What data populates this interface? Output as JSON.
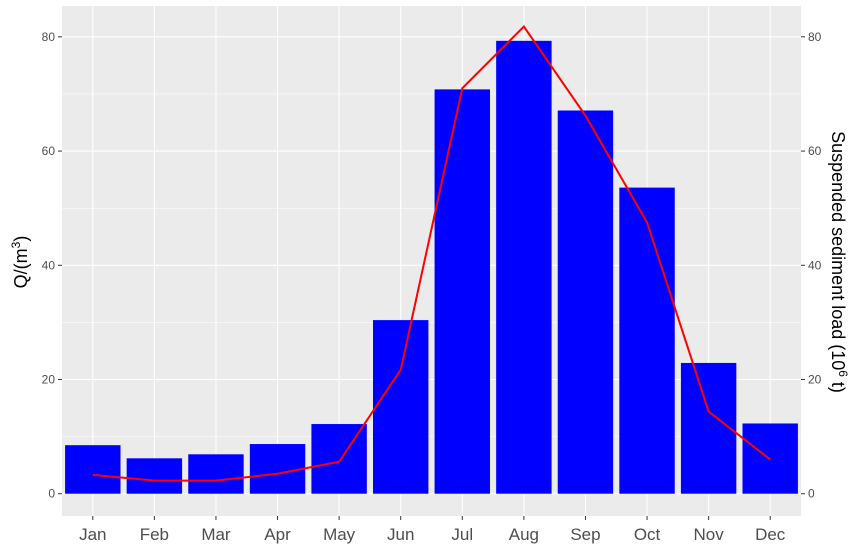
{
  "chart_data": {
    "type": "bar",
    "categories": [
      "Jan",
      "Feb",
      "Mar",
      "Apr",
      "May",
      "Jun",
      "Jul",
      "Aug",
      "Sep",
      "Oct",
      "Nov",
      "Dec"
    ],
    "series": [
      {
        "type": "bar",
        "axis": "left",
        "color": "#0000ff",
        "values": [
          8.5,
          6.2,
          6.9,
          8.7,
          12.2,
          30.4,
          70.8,
          79.3,
          67.1,
          53.6,
          22.9,
          12.3
        ]
      },
      {
        "type": "line",
        "axis": "right",
        "color": "#ff0000",
        "values": [
          3.3,
          2.3,
          2.3,
          3.5,
          5.6,
          21.7,
          71.0,
          81.8,
          66.2,
          47.5,
          14.4,
          6.0
        ]
      }
    ],
    "ylabel": "Q/(m",
    "ylabel_sup": "3",
    "ylabel_end": ")",
    "y2label": "Suspended sediment load (10",
    "y2label_sup": "6",
    "y2label_end": " t)",
    "ylim": [
      -3.9,
      85.4
    ],
    "y2lim": [
      -3.9,
      85.4
    ],
    "yticks": [
      0,
      20,
      40,
      60,
      80
    ],
    "y2ticks": [
      0,
      20,
      40,
      60,
      80
    ],
    "grid": true,
    "background_color": "#ebebeb",
    "grid_color": "#ffffff"
  }
}
